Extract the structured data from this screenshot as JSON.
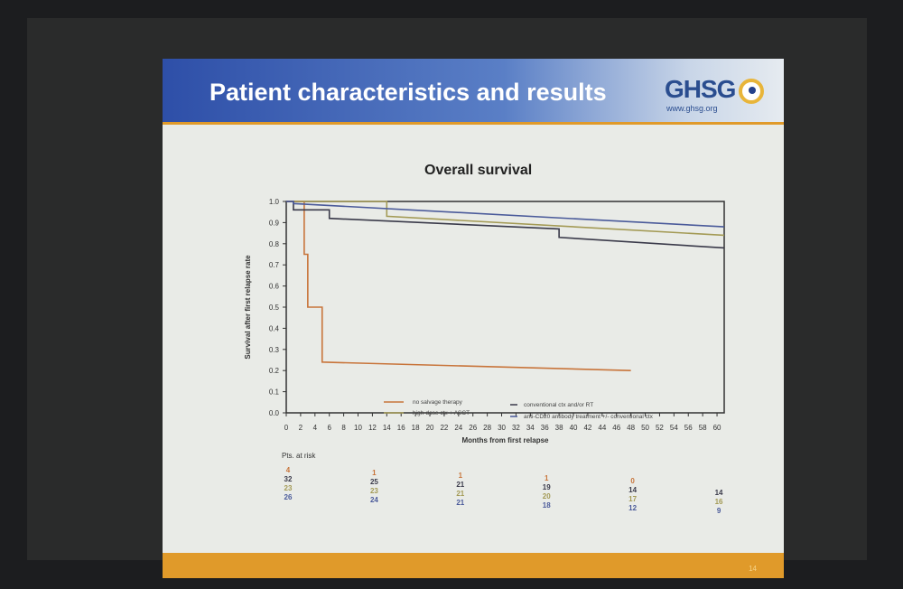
{
  "slide": {
    "title": "Patient characteristics and results",
    "logo": {
      "name": "GHSG",
      "url": "www.ghsg.org"
    },
    "page_number": "14"
  },
  "chart_data": {
    "type": "line",
    "title": "Overall survival",
    "xlabel": "Months from first relapse",
    "ylabel": "Survival after first relapse rate",
    "xlim": [
      0,
      61
    ],
    "ylim": [
      0,
      1.0
    ],
    "xticks": [
      0,
      2,
      4,
      6,
      8,
      10,
      12,
      14,
      16,
      18,
      20,
      22,
      24,
      26,
      28,
      30,
      32,
      34,
      36,
      38,
      40,
      42,
      44,
      46,
      48,
      50,
      52,
      54,
      56,
      58,
      60
    ],
    "yticks": [
      "0.0",
      "0.1",
      "0.2",
      "0.3",
      "0.4",
      "0.5",
      "0.6",
      "0.7",
      "0.8",
      "0.9",
      "1.0"
    ],
    "legend_position": "bottom-center",
    "series": [
      {
        "name": "no salvage therapy",
        "color": "#c8743a",
        "points": [
          [
            0,
            1.0
          ],
          [
            2.5,
            1.0
          ],
          [
            2.5,
            0.75
          ],
          [
            3,
            0.75
          ],
          [
            3,
            0.5
          ],
          [
            5,
            0.5
          ],
          [
            5,
            0.24
          ],
          [
            48,
            0.2
          ]
        ]
      },
      {
        "name": "high-dose ctx + ASCT",
        "color": "#a39a55",
        "points": [
          [
            0,
            1.0
          ],
          [
            14,
            1.0
          ],
          [
            14,
            0.93
          ],
          [
            61,
            0.84
          ]
        ]
      },
      {
        "name": "conventional ctx and/or RT",
        "color": "#3a3a4a",
        "points": [
          [
            0,
            1.0
          ],
          [
            1,
            1.0
          ],
          [
            1,
            0.96
          ],
          [
            6,
            0.96
          ],
          [
            6,
            0.92
          ],
          [
            38,
            0.87
          ],
          [
            38,
            0.83
          ],
          [
            61,
            0.78
          ]
        ]
      },
      {
        "name": "anti-CD20 antibody treatment +/- conventional ctx",
        "color": "#4a5a9a",
        "points": [
          [
            0,
            1.0
          ],
          [
            1,
            1.0
          ],
          [
            1,
            0.99
          ],
          [
            61,
            0.88
          ]
        ]
      }
    ],
    "risk_table": {
      "label": "Pts. at risk",
      "months": [
        0,
        12,
        24,
        36,
        48,
        60
      ],
      "rows": [
        {
          "series": "no salvage therapy",
          "values": [
            "4",
            "1",
            "1",
            "1",
            "0",
            ""
          ]
        },
        {
          "series": "conventional ctx and/or RT",
          "values": [
            "32",
            "25",
            "21",
            "19",
            "14",
            "14"
          ]
        },
        {
          "series": "high-dose ctx + ASCT",
          "values": [
            "23",
            "23",
            "21",
            "20",
            "17",
            "16"
          ]
        },
        {
          "series": "anti-CD20 antibody treatment +/- conventional ctx",
          "values": [
            "26",
            "24",
            "21",
            "18",
            "12",
            "9"
          ]
        }
      ]
    }
  }
}
